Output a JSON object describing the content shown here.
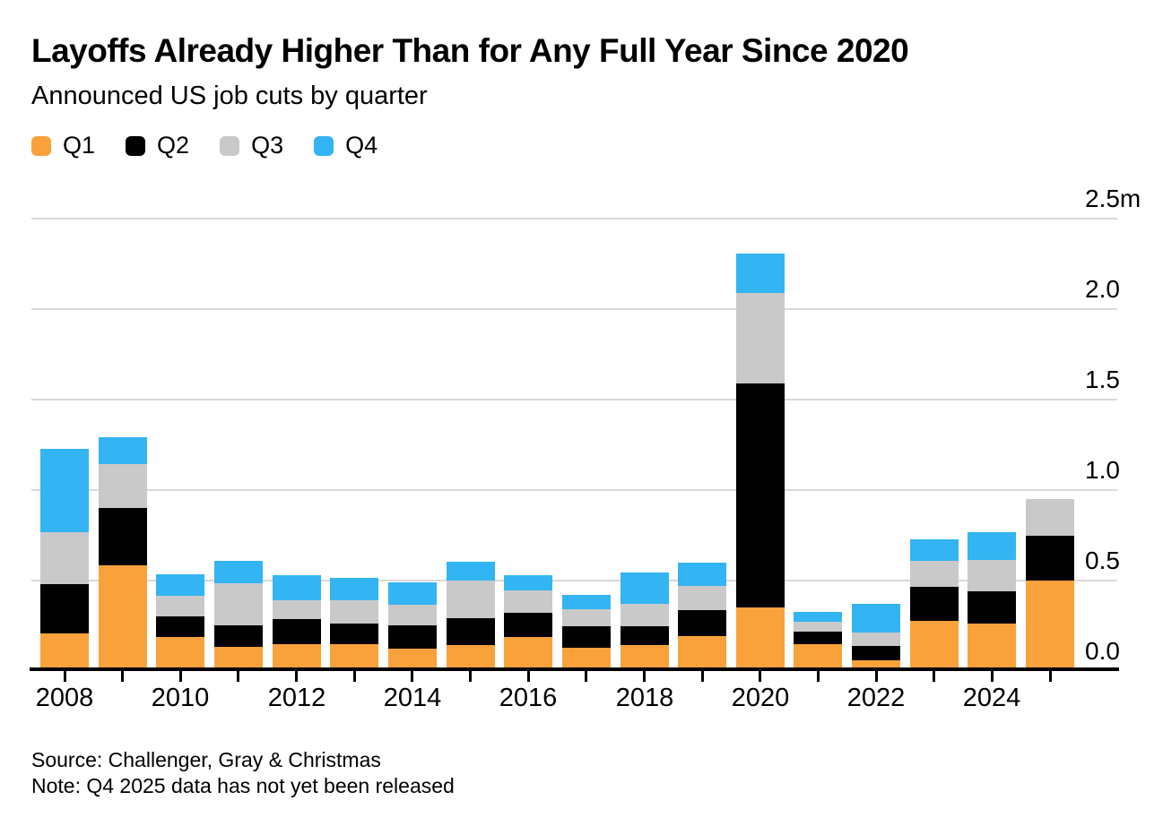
{
  "header": {
    "title": "Layoffs Already Higher Than for Any Full Year Since 2020",
    "subtitle": "Announced US job cuts by quarter"
  },
  "legend": {
    "items": [
      {
        "label": "Q1",
        "color": "#F9A23C"
      },
      {
        "label": "Q2",
        "color": "#000000"
      },
      {
        "label": "Q3",
        "color": "#C9C9C9"
      },
      {
        "label": "Q4",
        "color": "#33B4F3"
      }
    ]
  },
  "chart_data": {
    "type": "bar",
    "stacked": true,
    "title": "Layoffs Already Higher Than for Any Full Year Since 2020",
    "subtitle": "Announced US job cuts by quarter",
    "unit": "millions of announced US job cuts",
    "categories": [
      2008,
      2009,
      2010,
      2011,
      2012,
      2013,
      2014,
      2015,
      2016,
      2017,
      2018,
      2019,
      2020,
      2021,
      2022,
      2023,
      2024,
      2025
    ],
    "series": [
      {
        "name": "Q1",
        "color": "#F9A23C",
        "values": [
          0.201,
          0.579,
          0.181,
          0.131,
          0.143,
          0.145,
          0.121,
          0.14,
          0.185,
          0.126,
          0.14,
          0.19,
          0.347,
          0.145,
          0.056,
          0.27,
          0.257,
          0.497
        ]
      },
      {
        "name": "Q2",
        "color": "#000000",
        "values": [
          0.275,
          0.318,
          0.116,
          0.115,
          0.14,
          0.114,
          0.125,
          0.147,
          0.133,
          0.119,
          0.105,
          0.141,
          1.238,
          0.068,
          0.078,
          0.188,
          0.177,
          0.247
        ]
      },
      {
        "name": "Q3",
        "color": "#C9C9C9",
        "values": [
          0.287,
          0.24,
          0.114,
          0.233,
          0.103,
          0.128,
          0.117,
          0.206,
          0.122,
          0.094,
          0.121,
          0.134,
          0.497,
          0.053,
          0.076,
          0.146,
          0.175,
          0.202
        ]
      },
      {
        "name": "Q4",
        "color": "#33B4F3",
        "values": [
          0.461,
          0.151,
          0.119,
          0.127,
          0.137,
          0.122,
          0.12,
          0.105,
          0.087,
          0.079,
          0.173,
          0.128,
          0.222,
          0.057,
          0.154,
          0.117,
          0.152,
          null
        ]
      }
    ],
    "ylim": [
      0,
      2.5
    ],
    "ytick_interval": 0.5,
    "ytick_labels": [
      "0.0",
      "0.5",
      "1.0",
      "1.5",
      "2.0",
      "2.5m"
    ],
    "xtick_labeled_years": [
      "2008",
      "2010",
      "2012",
      "2014",
      "2016",
      "2018",
      "2020",
      "2022",
      "2024"
    ],
    "grid": "horizontal",
    "legend_position": "top-left",
    "y_axis_side": "right"
  },
  "footer": {
    "source": "Source: Challenger, Gray & Christmas",
    "note": "Note: Q4 2025 data has not yet been released"
  },
  "colors": {
    "q1_orange": "#F9A23C",
    "q2_black": "#000000",
    "q3_gray": "#C9C9C9",
    "q4_blue": "#33B4F3",
    "gridline": "#D9D9D9",
    "axis": "#000000",
    "text": "#000000",
    "background": "#FFFFFF"
  }
}
